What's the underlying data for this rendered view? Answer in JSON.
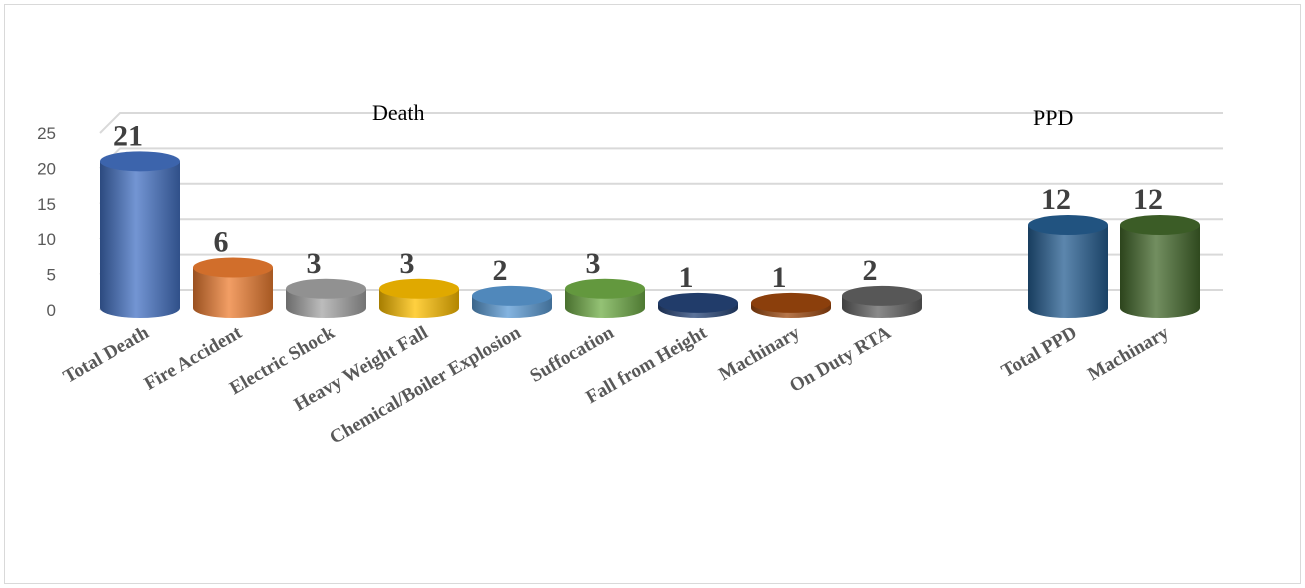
{
  "chart_data": {
    "type": "bar",
    "style": "3d-cylinder",
    "groups": [
      {
        "name": "Death",
        "categories": [
          "Total Death",
          "Fire Accident",
          "Electric Shock",
          "Heavy Weight Fall",
          "Chemical/Boiler Explosion",
          "Suffocation",
          "Fall from Height",
          "Machinary",
          "On Duty RTA"
        ],
        "values": [
          21,
          6,
          3,
          3,
          2,
          3,
          1,
          1,
          2
        ],
        "colors": [
          "#4472c4",
          "#ed7d31",
          "#a5a5a5",
          "#ffc000",
          "#5b9bd5",
          "#70ad47",
          "#264478",
          "#9e480e",
          "#636363"
        ]
      },
      {
        "name": "PPD",
        "categories": [
          "Total PPD",
          "Machinary"
        ],
        "values": [
          12,
          12
        ],
        "colors": [
          "#255e91",
          "#43682b"
        ]
      }
    ],
    "ylim": [
      0,
      25
    ],
    "yticks": [
      0,
      5,
      10,
      15,
      20,
      25
    ],
    "grid": true,
    "legend": "none",
    "xlabel": "",
    "ylabel": ""
  }
}
